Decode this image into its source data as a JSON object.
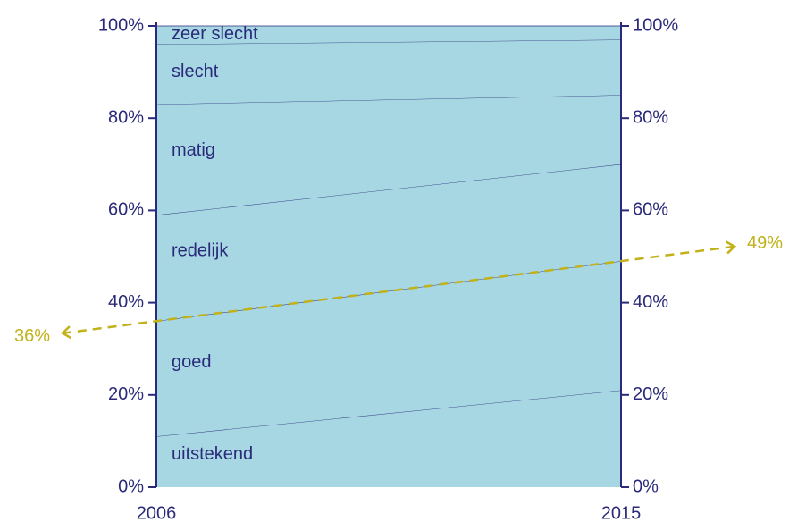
{
  "chart_data": {
    "type": "stacked_area",
    "x": [
      2006,
      2015
    ],
    "xlim": [
      2006,
      2015
    ],
    "xticks": [
      2006,
      2015
    ],
    "ylim": [
      0,
      100
    ],
    "yticks": [
      {
        "value": 0,
        "label": "0%"
      },
      {
        "value": 20,
        "label": "20%"
      },
      {
        "value": 40,
        "label": "40%"
      },
      {
        "value": 60,
        "label": "60%"
      },
      {
        "value": 80,
        "label": "80%"
      },
      {
        "value": 100,
        "label": "100%"
      }
    ],
    "y2lim": [
      0,
      100
    ],
    "y2ticks": [
      {
        "value": 0,
        "label": "0%"
      },
      {
        "value": 20,
        "label": "20%"
      },
      {
        "value": 40,
        "label": "40%"
      },
      {
        "value": 60,
        "label": "60%"
      },
      {
        "value": 80,
        "label": "80%"
      },
      {
        "value": 100,
        "label": "100%"
      }
    ],
    "series": [
      {
        "name": "uitstekend",
        "color": "#a6d7e2",
        "values": [
          11,
          21
        ]
      },
      {
        "name": "goed",
        "color": "#a6d7e2",
        "values": [
          25,
          28
        ]
      },
      {
        "name": "redelijk",
        "color": "#a6d7e2",
        "values": [
          23,
          21
        ]
      },
      {
        "name": "matig",
        "color": "#a6d7e2",
        "values": [
          24,
          15
        ]
      },
      {
        "name": "slecht",
        "color": "#a6d7e2",
        "values": [
          13,
          12
        ]
      },
      {
        "name": "zeer slecht",
        "color": "#a6d7e2",
        "values": [
          4,
          3
        ]
      }
    ],
    "annotations": [
      {
        "text": "36%",
        "value": 36
      },
      {
        "text": "49%",
        "value": 49
      }
    ],
    "annotation_color": "#c2b21a"
  }
}
